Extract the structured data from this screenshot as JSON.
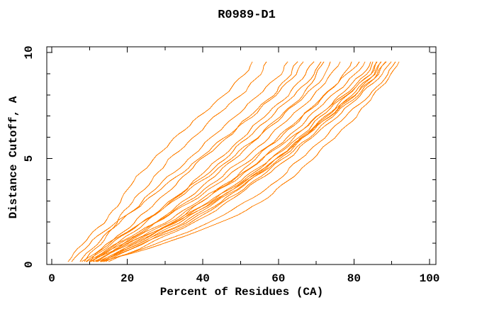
{
  "chart_data": {
    "type": "line",
    "title": "R0989-D1",
    "xlabel": "Percent of Residues (CA)",
    "ylabel": "Distance Cutoff, A",
    "xlim": [
      0,
      100
    ],
    "ylim": [
      0,
      10
    ],
    "grid": false,
    "legend": "none",
    "frame": "full-box-with-inward-ticks",
    "line_color": "#ff7f00",
    "axis_color": "#000000",
    "x_major_ticks": [
      0,
      20,
      40,
      60,
      80,
      100
    ],
    "x_minor_ticks": [
      10,
      30,
      50,
      70,
      90
    ],
    "x_tick_labels": [
      "0",
      "20",
      "40",
      "60",
      "80",
      "100"
    ],
    "y_major_ticks": [
      0,
      5,
      10
    ],
    "y_minor_ticks": [
      1,
      2,
      3,
      4,
      6,
      7,
      8,
      9
    ],
    "y_tick_labels": [
      "0",
      "5",
      "10"
    ],
    "cutoffs": [
      0.15,
      1,
      2,
      3,
      4,
      5,
      6,
      7,
      8,
      9,
      9.7
    ],
    "curves": [
      [
        4,
        8,
        14,
        18,
        22,
        27,
        33,
        39,
        46,
        51,
        54
      ],
      [
        8.5,
        13,
        17,
        21.5,
        26.5,
        31.5,
        37.5,
        43.5,
        50,
        55.5,
        57.5
      ],
      [
        7,
        12,
        18,
        24,
        30,
        36.5,
        42.5,
        48.5,
        55,
        60.5,
        63
      ],
      [
        10,
        15,
        22,
        28,
        34,
        40,
        46.5,
        52.5,
        58.5,
        63.5,
        65.5
      ],
      [
        5,
        10,
        17,
        25,
        32,
        39,
        46,
        53,
        59.5,
        64.5,
        67
      ],
      [
        11,
        17,
        25,
        32,
        38,
        44.5,
        50.5,
        56.5,
        62.5,
        67.5,
        69.5
      ],
      [
        9,
        16,
        24,
        31.5,
        39,
        46,
        52,
        58,
        64.5,
        69.5,
        71.5
      ],
      [
        12,
        19,
        28,
        35,
        42,
        48.5,
        54.5,
        60.5,
        66.5,
        70.5,
        72
      ],
      [
        8,
        15,
        24,
        32.5,
        40,
        47.5,
        54.5,
        61,
        67.5,
        72.5,
        74
      ],
      [
        10.5,
        18,
        28,
        36,
        44,
        51,
        57.5,
        63.5,
        69.5,
        74.5,
        76.5
      ],
      [
        13,
        22,
        32,
        40,
        47.5,
        54,
        60.5,
        66.5,
        72.5,
        77.5,
        80
      ],
      [
        9.5,
        17,
        28,
        37,
        45.5,
        53,
        60,
        66.5,
        72.5,
        78.5,
        82
      ],
      [
        11,
        20,
        31,
        40,
        48.5,
        56,
        62.5,
        68.5,
        74.5,
        80.5,
        84
      ],
      [
        12,
        22,
        33,
        42,
        50.5,
        58,
        64.5,
        70.5,
        76.5,
        82.5,
        85
      ],
      [
        10,
        19,
        30,
        39,
        48,
        56,
        63.5,
        70.5,
        77.5,
        83.5,
        86
      ],
      [
        13,
        23,
        34,
        43,
        52,
        59.5,
        66.5,
        72.5,
        78.5,
        84.5,
        86.5
      ],
      [
        11.5,
        21,
        32,
        42,
        51,
        58.5,
        65.5,
        71.5,
        78,
        84.5,
        87
      ],
      [
        14,
        24,
        36,
        45,
        53,
        60.5,
        67,
        73.5,
        79.5,
        85.5,
        87.5
      ],
      [
        12.5,
        23,
        35,
        44,
        52.5,
        60,
        66.5,
        73,
        80,
        85.5,
        88
      ],
      [
        10,
        20,
        33,
        43,
        52,
        59.5,
        66.5,
        73.5,
        80.5,
        86.5,
        88.5
      ],
      [
        13.5,
        24,
        37,
        46,
        54,
        61.5,
        68,
        74.5,
        81,
        86.5,
        89
      ],
      [
        15,
        26,
        38,
        47,
        55,
        62.5,
        69,
        75.5,
        82,
        87.5,
        90
      ],
      [
        14,
        28,
        42,
        52,
        60,
        66,
        72,
        78,
        84,
        89.5,
        91
      ],
      [
        13,
        30,
        45,
        56,
        63,
        69,
        75,
        80.5,
        85.5,
        90,
        92
      ]
    ]
  }
}
